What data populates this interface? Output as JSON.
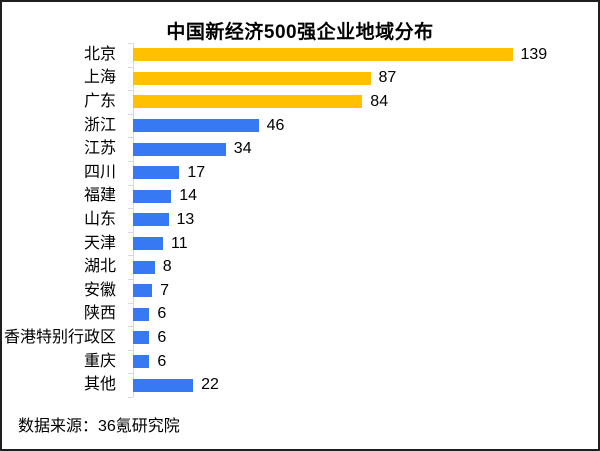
{
  "window": {
    "background": "#ffffff",
    "border_color": "#1f1f1f"
  },
  "chart_data": {
    "type": "bar",
    "orientation": "horizontal",
    "title": "中国新经济500强企业地域分布",
    "categories": [
      "北京",
      "上海",
      "广东",
      "浙江",
      "江苏",
      "四川",
      "福建",
      "山东",
      "天津",
      "湖北",
      "安徽",
      "陕西",
      "香港特别行政区",
      "重庆",
      "其他"
    ],
    "values": [
      139,
      87,
      84,
      46,
      34,
      17,
      14,
      13,
      11,
      8,
      7,
      6,
      6,
      6,
      22
    ],
    "bar_colors": [
      "#FFC000",
      "#FFC000",
      "#FFC000",
      "#3679F2",
      "#3679F2",
      "#3679F2",
      "#3679F2",
      "#3679F2",
      "#3679F2",
      "#3679F2",
      "#3679F2",
      "#3679F2",
      "#3679F2",
      "#3679F2",
      "#3679F2"
    ],
    "value_labels_shown": true,
    "xlabel": "",
    "ylabel": "",
    "xlim": [
      0,
      145
    ],
    "grid": false,
    "legend": false,
    "axis_color": "#d9d9d9",
    "text_color": "#000000"
  },
  "footer": {
    "source": "数据来源：36氪研究院"
  }
}
